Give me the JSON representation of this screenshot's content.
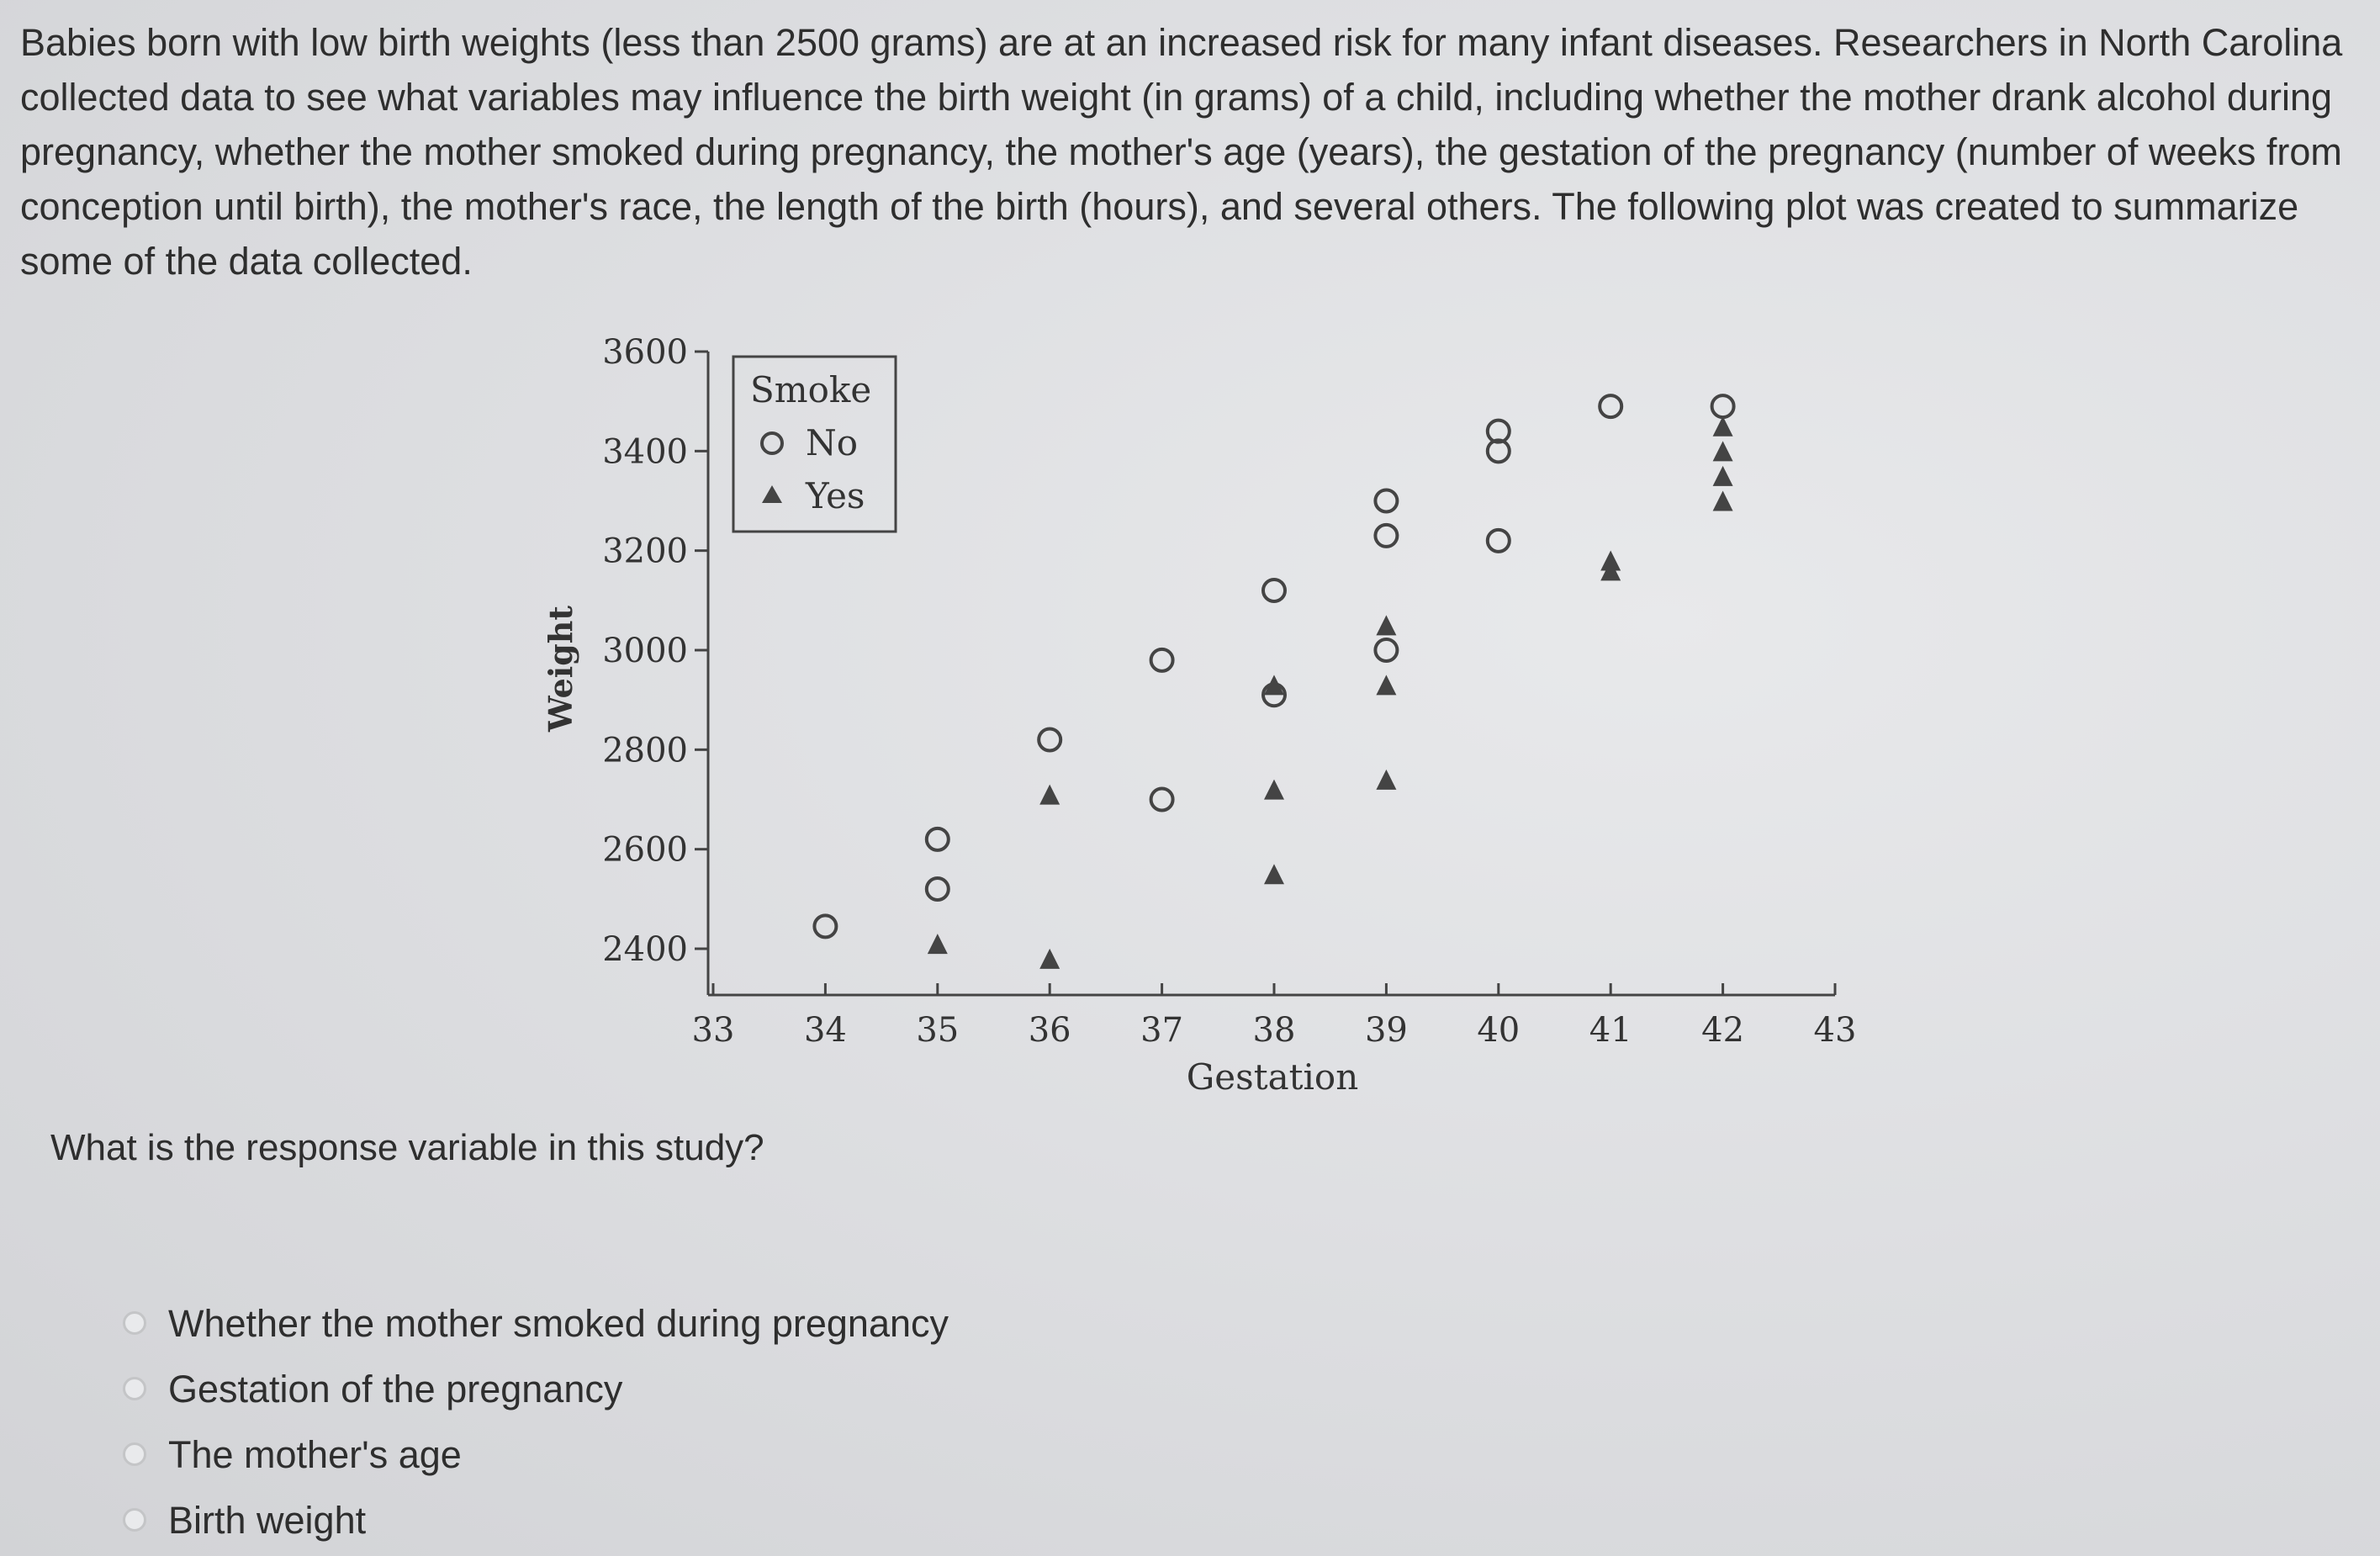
{
  "intro": {
    "text": "Babies born with low birth weights (less than 2500 grams) are at an increased risk for many infant diseases. Researchers in North Carolina collected data to see what variables may influence the birth weight (in grams) of a child, including whether the mother drank alcohol during pregnancy, whether the mother smoked during pregnancy, the mother's age (years), the gestation of the pregnancy (number of weeks from conception until birth), the mother's race, the length of the birth (hours), and several others. The following plot was created to summarize some of the data collected."
  },
  "chart_data": {
    "type": "scatter",
    "xlabel": "Gestation",
    "ylabel": "Weight",
    "xlim": [
      33,
      43
    ],
    "ylim": [
      2400,
      3600
    ],
    "x_ticks": [
      "33",
      "34",
      "35",
      "36",
      "37",
      "38",
      "39",
      "40",
      "41",
      "42",
      "43"
    ],
    "y_ticks": [
      "3600",
      "3400",
      "3200",
      "3000",
      "2800",
      "2600",
      "2400"
    ],
    "legend": {
      "title": "Smoke",
      "placement": "top-left"
    },
    "series": [
      {
        "name": "No",
        "marker": "circle",
        "points": [
          [
            34,
            2445
          ],
          [
            35,
            2620
          ],
          [
            35,
            2520
          ],
          [
            36,
            2820
          ],
          [
            37,
            2980
          ],
          [
            37,
            2700
          ],
          [
            38,
            3120
          ],
          [
            38,
            2910
          ],
          [
            39,
            3300
          ],
          [
            39,
            3230
          ],
          [
            39,
            3000
          ],
          [
            40,
            3440
          ],
          [
            40,
            3400
          ],
          [
            40,
            3220
          ],
          [
            41,
            3490
          ],
          [
            42,
            3490
          ]
        ]
      },
      {
        "name": "Yes",
        "marker": "triangle",
        "points": [
          [
            35,
            2410
          ],
          [
            36,
            2710
          ],
          [
            36,
            2380
          ],
          [
            38,
            2930
          ],
          [
            38,
            2720
          ],
          [
            38,
            2550
          ],
          [
            39,
            3050
          ],
          [
            39,
            2930
          ],
          [
            39,
            2740
          ],
          [
            41,
            3180
          ],
          [
            41,
            3160
          ],
          [
            42,
            3450
          ],
          [
            42,
            3400
          ],
          [
            42,
            3350
          ],
          [
            42,
            3300
          ]
        ]
      }
    ]
  },
  "question": {
    "text": "What is the response variable in this study?"
  },
  "options": [
    {
      "label": "Whether the mother smoked during pregnancy"
    },
    {
      "label": "Gestation of the pregnancy"
    },
    {
      "label": "The mother's age"
    },
    {
      "label": "Birth weight"
    }
  ]
}
